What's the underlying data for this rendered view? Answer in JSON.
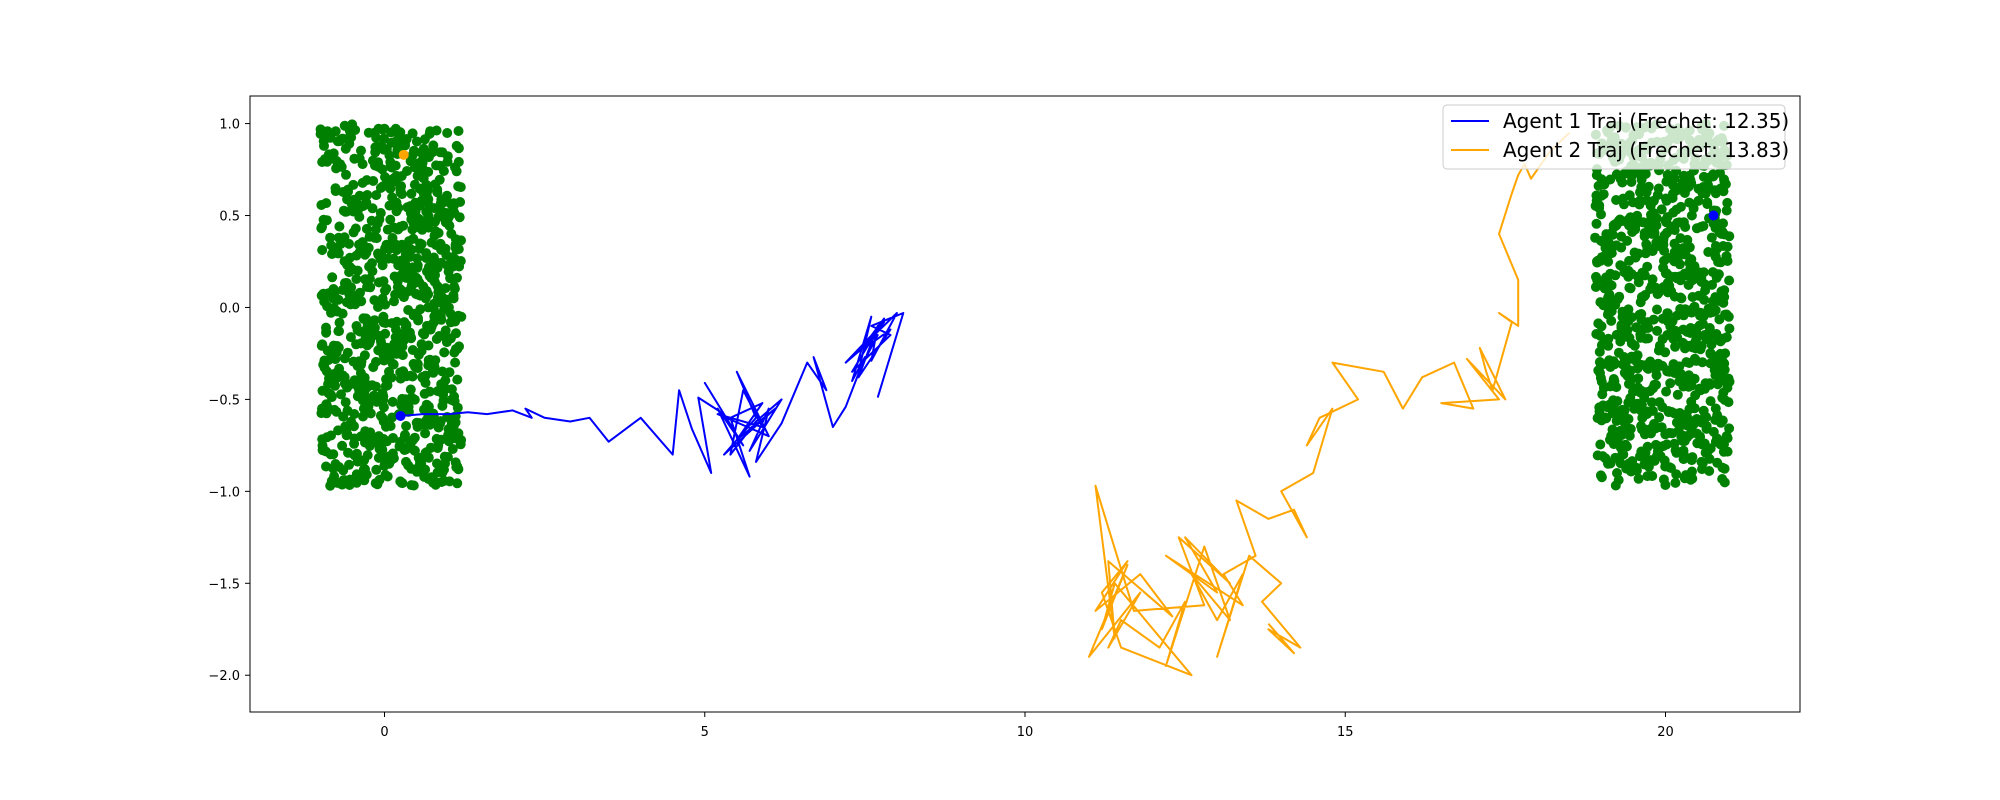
{
  "chart_data": {
    "type": "scatter",
    "xlim": [
      -2.1,
      22.1
    ],
    "ylim": [
      -2.2,
      1.15
    ],
    "xticks": [
      0,
      5,
      10,
      15,
      20
    ],
    "yticks": [
      1.0,
      0.5,
      0.0,
      -0.5,
      -1.0,
      -1.5,
      -2.0
    ],
    "xtick_labels": [
      "0",
      "5",
      "10",
      "15",
      "20"
    ],
    "ytick_labels": [
      "1.0",
      "0.5",
      "0.0",
      "−0.5",
      "−1.0",
      "−1.5",
      "−2.0"
    ],
    "grid": false,
    "legend_position": "top-right",
    "point_clouds": [
      {
        "color": "#008000",
        "x_range": [
          -1.0,
          1.2
        ],
        "y_range": [
          -0.97,
          1.0
        ],
        "count": 900,
        "seed": 7
      },
      {
        "color": "#008000",
        "x_range": [
          18.9,
          21.0
        ],
        "y_range": [
          -0.97,
          1.0
        ],
        "count": 900,
        "seed": 13
      }
    ],
    "series": [
      {
        "name": "Agent 1 Traj (Frechet: 12.35)",
        "color": "#0000ff",
        "x": [
          0.25,
          0.6,
          1.0,
          1.3,
          1.6,
          1.8,
          2.0,
          2.3,
          2.2,
          2.5,
          2.9,
          3.2,
          3.5,
          4.0,
          4.5,
          4.6,
          4.8,
          5.1,
          4.9,
          5.3,
          5.0,
          5.6,
          5.2,
          5.7,
          5.4,
          5.9,
          5.5,
          6.1,
          5.3,
          5.8,
          5.5,
          6.0,
          5.2,
          5.9,
          5.6,
          5.4,
          5.8,
          6.2,
          5.7,
          6.0,
          5.8,
          6.2,
          6.6,
          6.9,
          6.7,
          7.0,
          7.2,
          7.5,
          7.3,
          7.6,
          7.4,
          7.7,
          7.2,
          7.8,
          7.5,
          7.9,
          7.4,
          7.7,
          7.6,
          8.0,
          7.5,
          7.8,
          7.3,
          7.9,
          7.6,
          8.1,
          7.7
        ],
        "y": [
          -0.59,
          -0.58,
          -0.58,
          -0.57,
          -0.58,
          -0.57,
          -0.56,
          -0.6,
          -0.55,
          -0.6,
          -0.62,
          -0.6,
          -0.73,
          -0.6,
          -0.8,
          -0.45,
          -0.66,
          -0.9,
          -0.49,
          -0.58,
          -0.41,
          -0.75,
          -0.55,
          -0.92,
          -0.6,
          -0.52,
          -0.72,
          -0.55,
          -0.8,
          -0.6,
          -0.35,
          -0.7,
          -0.58,
          -0.65,
          -0.45,
          -0.8,
          -0.62,
          -0.5,
          -0.78,
          -0.55,
          -0.84,
          -0.63,
          -0.3,
          -0.45,
          -0.27,
          -0.65,
          -0.54,
          -0.27,
          -0.4,
          -0.05,
          -0.35,
          -0.15,
          -0.3,
          -0.08,
          -0.22,
          -0.12,
          -0.38,
          -0.1,
          -0.29,
          -0.03,
          -0.2,
          -0.06,
          -0.35,
          -0.15,
          -0.1,
          -0.03,
          -0.49
        ]
      },
      {
        "name": "Agent 2 Traj (Frechet: 13.83)",
        "color": "#ffa500",
        "x": [
          13.8,
          14.2,
          13.8,
          14.3,
          13.7,
          14.0,
          13.5,
          13.0,
          13.4,
          13.0,
          12.6,
          13.2,
          12.8,
          12.2,
          12.5,
          12.1,
          11.5,
          11.3,
          11.8,
          11.0,
          11.6,
          11.2,
          11.4,
          12.6,
          11.5,
          11.2,
          11.6,
          11.1,
          11.8,
          12.3,
          11.3,
          11.4,
          11.1,
          11.7,
          12.8,
          12.4,
          13.2,
          12.5,
          13.0,
          12.2,
          13.4,
          13.1,
          13.6,
          13.3,
          13.8,
          14.2,
          14.4,
          14.0,
          14.5,
          14.8,
          14.4,
          14.6,
          15.2,
          14.8,
          15.6,
          15.9,
          16.2,
          16.7,
          17.0,
          16.5,
          17.4,
          16.9,
          17.5,
          17.1,
          17.2,
          17.3,
          17.6,
          17.4,
          17.7,
          17.7,
          17.4,
          17.6,
          17.7,
          17.8,
          17.9,
          18.2,
          18.5
        ],
        "y": [
          -1.72,
          -1.88,
          -1.75,
          -1.85,
          -1.6,
          -1.5,
          -1.35,
          -1.9,
          -1.45,
          -1.7,
          -1.45,
          -1.7,
          -1.3,
          -1.95,
          -1.6,
          -1.85,
          -1.7,
          -1.85,
          -1.55,
          -1.9,
          -1.4,
          -1.75,
          -1.5,
          -2.0,
          -1.85,
          -1.55,
          -1.38,
          -1.65,
          -1.45,
          -1.68,
          -1.38,
          -1.8,
          -0.97,
          -1.65,
          -1.62,
          -1.25,
          -1.5,
          -1.25,
          -1.55,
          -1.35,
          -1.62,
          -1.45,
          -1.35,
          -1.05,
          -1.15,
          -1.1,
          -1.25,
          -1.0,
          -0.9,
          -0.55,
          -0.75,
          -0.6,
          -0.5,
          -0.3,
          -0.35,
          -0.55,
          -0.38,
          -0.3,
          -0.55,
          -0.52,
          -0.5,
          -0.28,
          -0.5,
          -0.22,
          -0.35,
          -0.45,
          -0.08,
          -0.03,
          -0.1,
          0.15,
          0.4,
          0.62,
          0.72,
          0.78,
          0.7,
          0.85,
          0.95
        ]
      }
    ],
    "markers": [
      {
        "x": 0.25,
        "y": -0.59,
        "color": "#0000ff"
      },
      {
        "x": 20.75,
        "y": 0.5,
        "color": "#0000ff"
      },
      {
        "x": 0.3,
        "y": 0.83,
        "color": "#ffa500"
      }
    ]
  }
}
